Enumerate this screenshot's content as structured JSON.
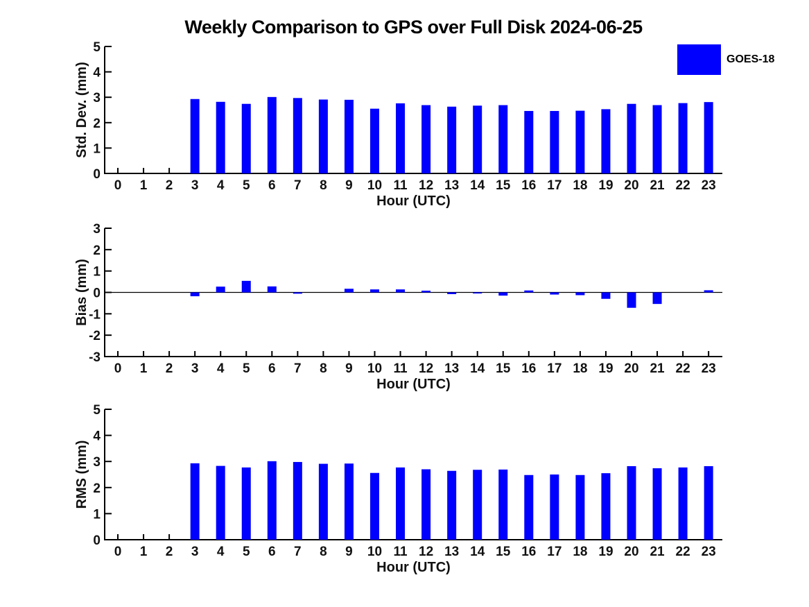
{
  "title": "Weekly Comparison to GPS over Full Disk 2024-06-25",
  "legend": {
    "label": "GOES-18",
    "color": "#0000ff",
    "position": "top-right"
  },
  "colors": {
    "bar": "#0000ff",
    "axis": "#000000",
    "text": "#111111",
    "background": "#ffffff"
  },
  "chart_data": [
    {
      "type": "bar",
      "name": "std_dev",
      "title": "",
      "xlabel": "Hour (UTC)",
      "ylabel": "Std. Dev. (mm)",
      "ylim": [
        0,
        5
      ],
      "yticks": [
        0,
        1,
        2,
        3,
        4,
        5
      ],
      "grid": false,
      "legend_position": "top-right",
      "categories": [
        "0",
        "1",
        "2",
        "3",
        "4",
        "5",
        "6",
        "7",
        "8",
        "9",
        "10",
        "11",
        "12",
        "13",
        "14",
        "15",
        "16",
        "17",
        "18",
        "19",
        "20",
        "21",
        "22",
        "23"
      ],
      "series": [
        {
          "name": "GOES-18",
          "values": [
            0,
            0,
            0,
            2.93,
            2.82,
            2.74,
            3.01,
            2.97,
            2.91,
            2.9,
            2.55,
            2.76,
            2.69,
            2.63,
            2.67,
            2.69,
            2.46,
            2.46,
            2.47,
            2.53,
            2.74,
            2.69,
            2.77,
            2.81
          ]
        }
      ]
    },
    {
      "type": "bar",
      "name": "bias",
      "title": "",
      "xlabel": "Hour (UTC)",
      "ylabel": "Bias (mm)",
      "ylim": [
        -3,
        3
      ],
      "yticks": [
        -3,
        -2,
        -1,
        0,
        1,
        2,
        3
      ],
      "grid": false,
      "zero_line": true,
      "categories": [
        "0",
        "1",
        "2",
        "3",
        "4",
        "5",
        "6",
        "7",
        "8",
        "9",
        "10",
        "11",
        "12",
        "13",
        "14",
        "15",
        "16",
        "17",
        "18",
        "19",
        "20",
        "21",
        "22",
        "23"
      ],
      "series": [
        {
          "name": "GOES-18",
          "values": [
            0,
            0,
            0,
            -0.18,
            0.27,
            0.54,
            0.28,
            -0.06,
            0,
            0.17,
            0.14,
            0.14,
            0.08,
            -0.08,
            -0.05,
            -0.15,
            0.09,
            -0.1,
            -0.13,
            -0.3,
            -0.72,
            -0.54,
            0,
            0.1
          ]
        }
      ]
    },
    {
      "type": "bar",
      "name": "rms",
      "title": "",
      "xlabel": "Hour (UTC)",
      "ylabel": "RMS (mm)",
      "ylim": [
        0,
        5
      ],
      "yticks": [
        0,
        1,
        2,
        3,
        4,
        5
      ],
      "grid": false,
      "categories": [
        "0",
        "1",
        "2",
        "3",
        "4",
        "5",
        "6",
        "7",
        "8",
        "9",
        "10",
        "11",
        "12",
        "13",
        "14",
        "15",
        "16",
        "17",
        "18",
        "19",
        "20",
        "21",
        "22",
        "23"
      ],
      "series": [
        {
          "name": "GOES-18",
          "values": [
            0,
            0,
            0,
            2.93,
            2.83,
            2.77,
            3.01,
            2.98,
            2.91,
            2.92,
            2.56,
            2.77,
            2.7,
            2.64,
            2.68,
            2.69,
            2.48,
            2.5,
            2.48,
            2.55,
            2.82,
            2.74,
            2.77,
            2.82
          ]
        }
      ]
    }
  ]
}
